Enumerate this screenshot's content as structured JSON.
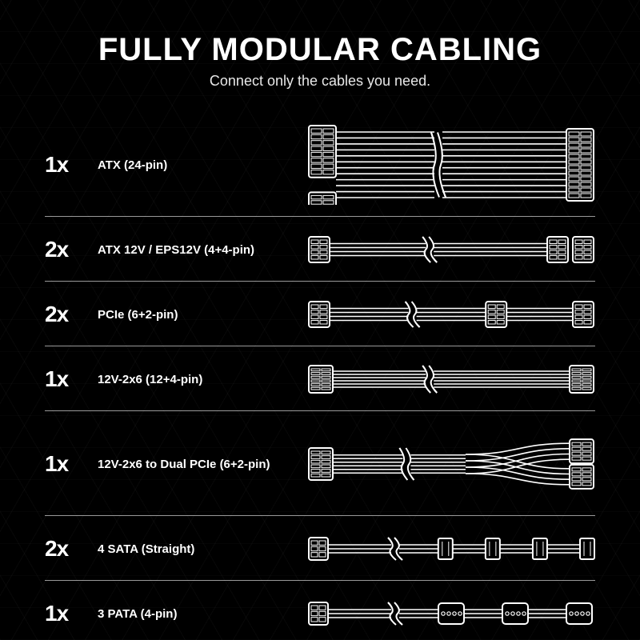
{
  "title": "FULLY MODULAR CABLING",
  "subtitle": "Connect only the cables you need.",
  "colors": {
    "background": "#000000",
    "foreground": "#ffffff",
    "divider": "rgba(255,255,255,0.6)",
    "pattern": "rgba(255,255,255,0.03)"
  },
  "typography": {
    "title_fontsize": 40,
    "title_weight": 800,
    "subtitle_fontsize": 18,
    "qty_fontsize": 28,
    "label_fontsize": 15
  },
  "cable_style": {
    "stroke": "#ffffff",
    "stroke_width": 2,
    "connector_fill": "#000000",
    "wire_width": 1.6
  },
  "rows": [
    {
      "qty": "1x",
      "label": "ATX (24-pin)",
      "cable": {
        "type": "atx24",
        "left_rows": 12,
        "right_rows": 12,
        "wires": 12,
        "break": true,
        "height": 100
      }
    },
    {
      "qty": "2x",
      "label": "ATX 12V / EPS12V (4+4-pin)",
      "cable": {
        "type": "eps",
        "left_rows": 4,
        "right_rows": 4,
        "split_right": true,
        "wires": 4,
        "break": true,
        "height": 40
      }
    },
    {
      "qty": "2x",
      "label": "PCIe (6+2-pin)",
      "cable": {
        "type": "pcie_daisy",
        "left_rows": 4,
        "mid_rows": 4,
        "right_rows": 4,
        "wires": 4,
        "break": true,
        "height": 40
      }
    },
    {
      "qty": "1x",
      "label": "12V-2x6 (12+4-pin)",
      "cable": {
        "type": "twelveV",
        "left_rows": 6,
        "right_rows": 6,
        "wires": 6,
        "break": true,
        "height": 40
      }
    },
    {
      "qty": "1x",
      "label": "12V-2x6 to Dual PCIe (6+2-pin)",
      "cable": {
        "type": "dual_pcie",
        "left_rows": 6,
        "right_upper_rows": 4,
        "right_lower_rows": 4,
        "wires": 6,
        "break": true,
        "height": 72
      }
    },
    {
      "qty": "2x",
      "label": "4 SATA (Straight)",
      "cable": {
        "type": "sata",
        "left_rows": 3,
        "connectors": 4,
        "wires": 3,
        "break": true,
        "height": 40
      }
    },
    {
      "qty": "1x",
      "label": "3 PATA (4-pin)",
      "cable": {
        "type": "pata",
        "left_rows": 3,
        "connectors": 3,
        "wires": 3,
        "break": true,
        "height": 40
      }
    }
  ]
}
